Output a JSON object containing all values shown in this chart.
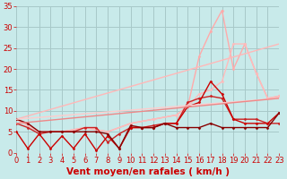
{
  "xlabel": "Vent moyen/en rafales ( km/h )",
  "xlim": [
    0,
    23
  ],
  "ylim": [
    0,
    35
  ],
  "xticks": [
    0,
    1,
    2,
    3,
    4,
    5,
    6,
    7,
    8,
    9,
    10,
    11,
    12,
    13,
    14,
    15,
    16,
    17,
    18,
    19,
    20,
    21,
    22,
    23
  ],
  "yticks": [
    0,
    5,
    10,
    15,
    20,
    25,
    30,
    35
  ],
  "bg_color": "#c8eaea",
  "grid_color": "#a8c8c8",
  "series": [
    {
      "x": [
        0,
        2,
        4,
        6,
        8,
        10,
        12,
        14,
        15,
        16,
        17,
        18,
        19,
        20,
        21,
        22,
        23
      ],
      "y": [
        8,
        5,
        5,
        6,
        5,
        7,
        8,
        9,
        11,
        23,
        29,
        34,
        20,
        26,
        19,
        13,
        13.5
      ],
      "color": "#ffaaaa",
      "lw": 1.0,
      "marker": "D",
      "ms": 1.5
    },
    {
      "x": [
        0,
        23
      ],
      "y": [
        8,
        26
      ],
      "color": "#ffb8b8",
      "lw": 1.0,
      "marker": null,
      "ms": 0
    },
    {
      "x": [
        0,
        2,
        4,
        6,
        8,
        10,
        12,
        14,
        15,
        16,
        17,
        18,
        19,
        20,
        21,
        22,
        23
      ],
      "y": [
        8,
        5,
        5,
        6,
        5,
        7,
        8,
        9,
        11,
        14,
        15,
        17,
        26,
        26,
        19,
        13,
        13.5
      ],
      "color": "#ffbbbb",
      "lw": 1.0,
      "marker": "D",
      "ms": 1.5
    },
    {
      "x": [
        0,
        1,
        2,
        3,
        4,
        5,
        6,
        7,
        8,
        9,
        10,
        11,
        12,
        13,
        14,
        15,
        16,
        17,
        18,
        19,
        20,
        21,
        22,
        23
      ],
      "y": [
        7,
        6,
        4.5,
        5,
        5,
        5,
        6,
        6,
        2.5,
        4.5,
        6,
        6,
        6.5,
        7,
        7,
        12,
        13,
        13.5,
        13,
        8,
        8,
        8,
        7,
        7
      ],
      "color": "#cc2222",
      "lw": 1.0,
      "marker": "D",
      "ms": 1.5
    },
    {
      "x": [
        0,
        1,
        2,
        3,
        4,
        5,
        6,
        7,
        8,
        9,
        10,
        11,
        12,
        13,
        14,
        15,
        16,
        17,
        18,
        19,
        20,
        21,
        22,
        23
      ],
      "y": [
        5,
        1,
        4.5,
        1,
        4,
        1,
        4.5,
        0.5,
        4,
        1,
        6,
        6,
        6,
        7,
        7,
        11,
        12,
        17,
        14,
        8,
        7,
        7,
        7,
        9.5
      ],
      "color": "#cc0000",
      "lw": 1.0,
      "marker": "D",
      "ms": 1.5
    },
    {
      "x": [
        0,
        1,
        2,
        3,
        4,
        5,
        6,
        7,
        8,
        9,
        10,
        11,
        12,
        13,
        14,
        15,
        16,
        17,
        18,
        19,
        20,
        21,
        22,
        23
      ],
      "y": [
        8,
        7,
        5,
        5,
        5,
        5,
        5,
        5,
        4.5,
        1,
        6.5,
        6,
        6,
        7,
        6,
        6,
        6,
        7,
        6,
        6,
        6,
        6,
        6,
        9.5
      ],
      "color": "#880000",
      "lw": 1.0,
      "marker": "D",
      "ms": 1.5
    },
    {
      "x": [
        0,
        23
      ],
      "y": [
        8,
        13
      ],
      "color": "#ffcccc",
      "lw": 1.0,
      "marker": null,
      "ms": 0
    },
    {
      "x": [
        0,
        23
      ],
      "y": [
        7,
        13
      ],
      "color": "#ee8888",
      "lw": 1.0,
      "marker": null,
      "ms": 0
    }
  ],
  "tick_color": "#cc0000",
  "tick_fontsize": 6,
  "xlabel_fontsize": 7.5,
  "xlabel_color": "#cc0000",
  "xlabel_fontweight": "bold"
}
